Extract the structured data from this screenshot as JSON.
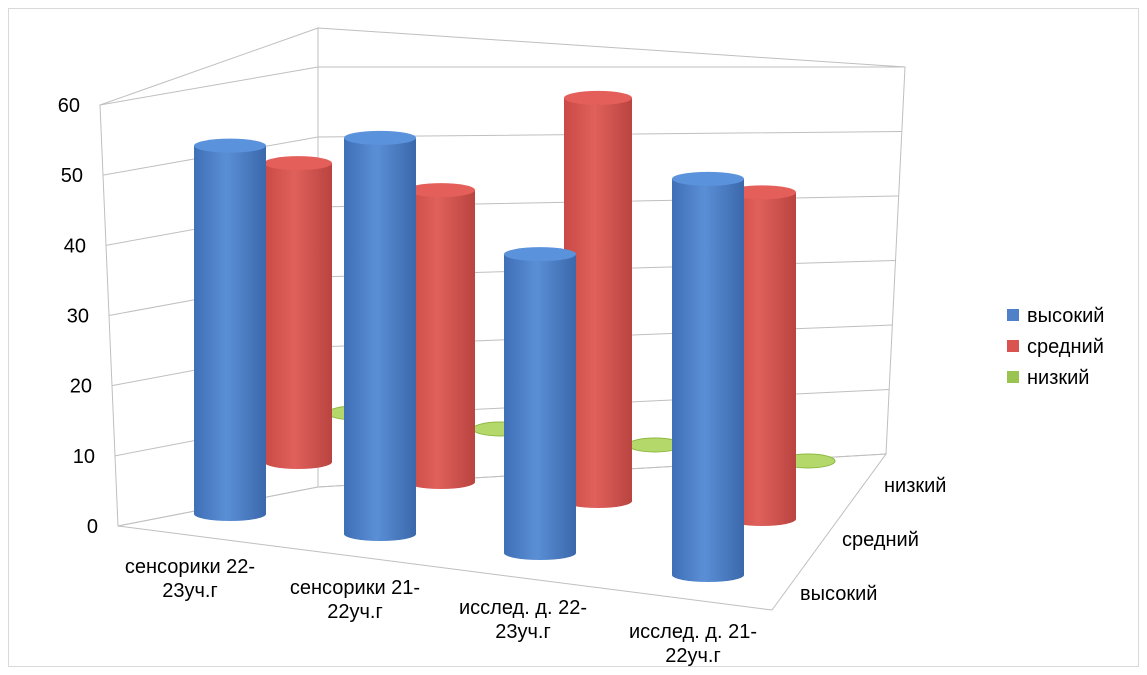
{
  "chart_data": {
    "type": "bar",
    "style": "3d-cylinder",
    "categories": [
      [
        "сенсорики 22-",
        "23уч.г"
      ],
      [
        "сенсорики 21-",
        "22уч.г"
      ],
      [
        "исслед. д. 22-",
        "23уч.г"
      ],
      [
        "исслед. д. 21-",
        "22уч.г"
      ]
    ],
    "series": [
      {
        "name": "высокий",
        "color": "#4f81c9",
        "values": [
          53,
          57,
          43,
          57
        ]
      },
      {
        "name": "средний",
        "color": "#d9534f",
        "values": [
          43,
          42,
          58,
          47
        ]
      },
      {
        "name": "низкий",
        "color": "#9bc34f",
        "values": [
          0,
          0,
          0,
          0
        ]
      }
    ],
    "y_ticks": [
      "0",
      "10",
      "20",
      "30",
      "40",
      "50",
      "60"
    ],
    "ylim": [
      0,
      60
    ],
    "depth_labels": [
      "высокий",
      "средний",
      "низкий"
    ],
    "legend": {
      "position": "right",
      "items": [
        "высокий",
        "средний",
        "низкий"
      ]
    },
    "grid": true
  }
}
